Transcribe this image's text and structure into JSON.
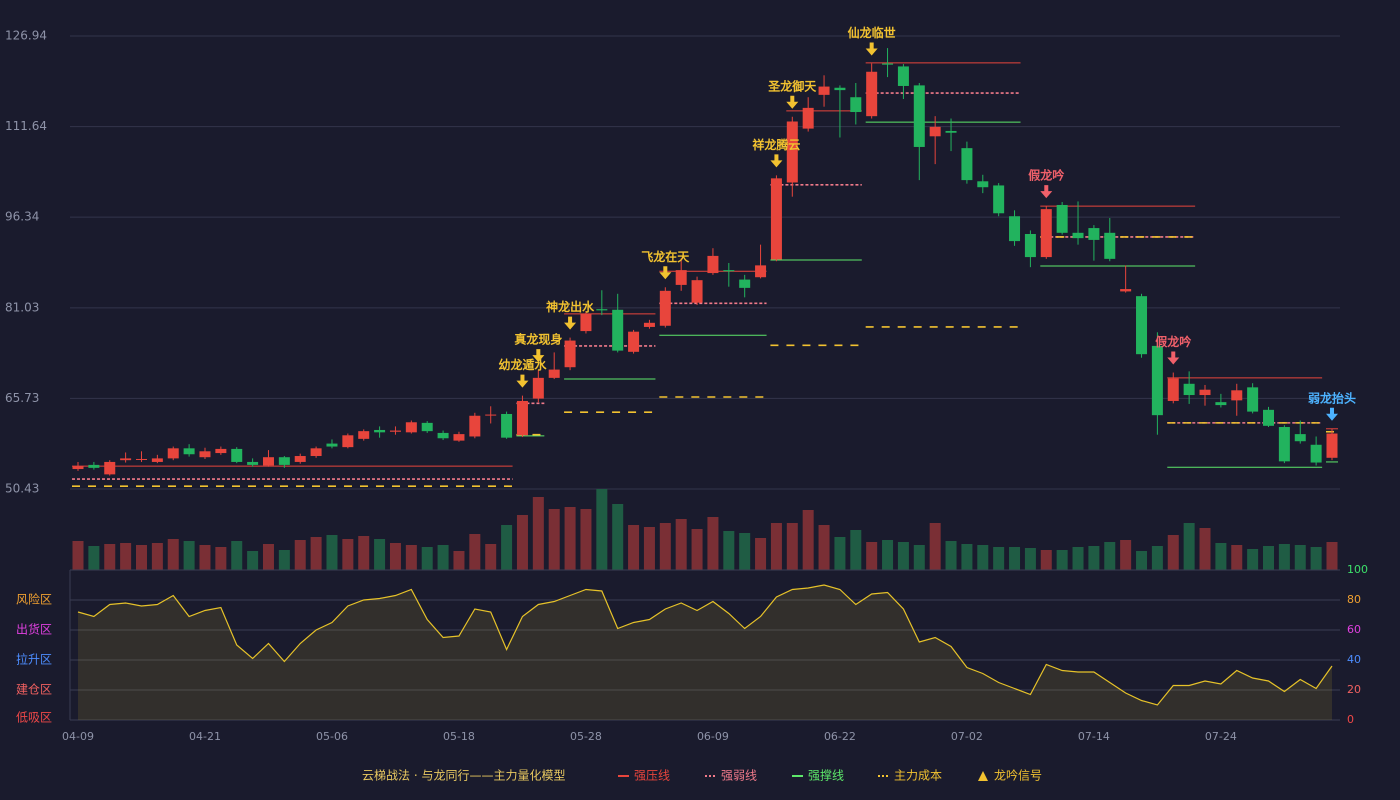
{
  "chart_data": [
    {
      "type": "candlestick",
      "categories": [
        "04-09",
        null,
        null,
        null,
        null,
        null,
        null,
        null,
        "04-21",
        null,
        null,
        null,
        null,
        null,
        null,
        null,
        "05-06",
        null,
        null,
        null,
        null,
        null,
        null,
        null,
        "05-18",
        null,
        null,
        null,
        null,
        null,
        null,
        null,
        "05-28",
        null,
        null,
        null,
        null,
        null,
        null,
        null,
        "06-09",
        null,
        null,
        null,
        null,
        null,
        null,
        null,
        "06-22",
        null,
        null,
        null,
        null,
        null,
        null,
        null,
        "07-02",
        null,
        null,
        null,
        null,
        null,
        null,
        null,
        "07-14",
        null,
        null,
        null,
        null,
        null,
        null,
        null,
        "07-24",
        null,
        null,
        null,
        null,
        null,
        null,
        null
      ],
      "open": [
        53.8,
        54.5,
        52.9,
        55.3,
        55.4,
        55.0,
        55.6,
        57.3,
        55.8,
        56.5,
        57.2,
        55.0,
        54.4,
        55.8,
        55.0,
        56.0,
        58.1,
        57.5,
        58.9,
        60.4,
        60.1,
        60.0,
        61.6,
        59.9,
        58.6,
        59.3,
        62.9,
        63.1,
        59.5,
        65.7,
        69.2,
        71.0,
        77.1,
        80.8,
        80.7,
        73.6,
        77.8,
        78.0,
        84.9,
        81.9,
        86.9,
        87.4,
        85.8,
        86.2,
        89.2,
        102.2,
        111.3,
        117.0,
        118.2,
        116.6,
        113.4,
        122.3,
        121.8,
        118.6,
        110.0,
        110.9,
        108.0,
        102.4,
        101.7,
        96.5,
        93.5,
        89.6,
        98.4,
        93.7,
        94.5,
        93.7,
        83.8,
        83.0,
        74.6,
        65.3,
        68.2,
        66.3,
        65.1,
        65.4,
        67.6,
        63.8,
        60.9,
        59.7,
        57.9,
        55.7
      ],
      "high": [
        55.0,
        55.0,
        55.3,
        56.6,
        56.8,
        56.2,
        57.6,
        58.0,
        57.4,
        57.6,
        57.5,
        55.6,
        57.0,
        56.0,
        56.4,
        57.6,
        58.8,
        59.8,
        60.5,
        61.0,
        61.0,
        62.0,
        61.9,
        60.3,
        60.1,
        63.3,
        64.4,
        63.5,
        66.2,
        70.5,
        73.5,
        76.0,
        80.5,
        84.0,
        83.4,
        77.3,
        79.0,
        84.5,
        89.4,
        86.3,
        91.1,
        88.6,
        86.6,
        91.7,
        103.4,
        113.3,
        116.6,
        120.3,
        118.6,
        119.0,
        122.3,
        124.9,
        122.2,
        119.0,
        113.4,
        113.0,
        109.1,
        103.5,
        102.1,
        97.5,
        94.1,
        98.2,
        98.9,
        99.0,
        95.0,
        96.2,
        88.2,
        83.4,
        76.9,
        70.1,
        70.3,
        68.0,
        66.5,
        68.2,
        68.3,
        64.3,
        61.2,
        62.0,
        59.3,
        60.6
      ],
      "low": [
        53.5,
        53.7,
        52.7,
        54.9,
        55.0,
        54.8,
        55.3,
        55.9,
        55.5,
        56.2,
        54.8,
        54.2,
        54.2,
        54.0,
        54.7,
        55.7,
        57.3,
        57.3,
        58.6,
        59.1,
        59.6,
        59.8,
        59.9,
        58.7,
        58.4,
        59.0,
        61.5,
        58.9,
        59.2,
        65.1,
        69.0,
        70.5,
        76.7,
        79.8,
        73.5,
        73.3,
        77.5,
        77.7,
        83.9,
        81.5,
        86.6,
        84.6,
        82.8,
        86.0,
        88.9,
        99.8,
        110.8,
        115.0,
        109.8,
        112.0,
        113.0,
        120.0,
        116.3,
        102.6,
        105.3,
        107.5,
        102.0,
        100.4,
        96.5,
        91.5,
        87.9,
        89.3,
        93.4,
        91.7,
        89.0,
        88.9,
        83.6,
        72.6,
        59.6,
        64.9,
        64.8,
        64.5,
        64.2,
        62.8,
        63.2,
        60.9,
        54.8,
        58.1,
        54.4,
        55.3
      ],
      "close": [
        54.3,
        54.0,
        55.0,
        55.6,
        55.5,
        55.6,
        57.3,
        56.3,
        56.8,
        57.2,
        55.0,
        54.5,
        55.8,
        54.5,
        56.0,
        57.3,
        57.6,
        59.5,
        60.2,
        60.0,
        60.3,
        61.7,
        60.2,
        59.0,
        59.7,
        62.8,
        63.0,
        59.1,
        65.3,
        69.2,
        70.6,
        75.5,
        80.0,
        80.6,
        73.8,
        77.0,
        78.5,
        83.9,
        87.4,
        85.7,
        89.8,
        87.2,
        84.4,
        88.2,
        102.9,
        112.5,
        114.8,
        118.4,
        117.8,
        114.1,
        120.9,
        122.1,
        118.5,
        108.2,
        111.6,
        110.6,
        102.6,
        101.4,
        97.0,
        92.3,
        89.6,
        97.7,
        93.7,
        92.8,
        92.5,
        89.3,
        84.2,
        73.2,
        62.9,
        69.1,
        66.3,
        67.2,
        64.6,
        67.1,
        63.5,
        61.1,
        55.1,
        58.5,
        54.9,
        59.8
      ],
      "up_color": "#e8453c",
      "down_color": "#22b35e",
      "ylim": [
        50.43,
        126.94
      ],
      "yticks": [
        50.43,
        65.73,
        81.03,
        96.34,
        111.64,
        126.94
      ],
      "grid": true,
      "levels": [
        {
          "name": "强压线",
          "color": "#e8453c",
          "dashed": false,
          "segments": [
            {
              "from": 0,
              "to": 27,
              "value": 54.3
            },
            {
              "from": 31,
              "to": 36,
              "value": 80.0
            },
            {
              "from": 37,
              "to": 43,
              "value": 87.2
            },
            {
              "from": 45,
              "to": 49,
              "value": 114.3
            },
            {
              "from": 50,
              "to": 59,
              "value": 122.4
            },
            {
              "from": 61,
              "to": 70,
              "value": 98.2
            },
            {
              "from": 69,
              "to": 78,
              "value": 69.2
            },
            {
              "from": 79,
              "to": 79,
              "value": 60.6
            }
          ]
        },
        {
          "name": "强弱线",
          "color": "#f07a8a",
          "dashed": true,
          "segments": [
            {
              "from": 0,
              "to": 27,
              "value": 52.1
            },
            {
              "from": 28,
              "to": 29,
              "value": 64.9
            },
            {
              "from": 31,
              "to": 36,
              "value": 74.6
            },
            {
              "from": 37,
              "to": 43,
              "value": 81.8
            },
            {
              "from": 44,
              "to": 49,
              "value": 101.8
            },
            {
              "from": 50,
              "to": 59,
              "value": 117.3
            },
            {
              "from": 61,
              "to": 70,
              "value": 93.0
            },
            {
              "from": 69,
              "to": 78,
              "value": 61.6
            }
          ]
        },
        {
          "name": "强撑线",
          "color": "#5de86a",
          "dashed": false,
          "segments": [
            {
              "from": 28,
              "to": 29,
              "value": 59.4
            },
            {
              "from": 31,
              "to": 36,
              "value": 69.0
            },
            {
              "from": 37,
              "to": 43,
              "value": 76.4
            },
            {
              "from": 44,
              "to": 49,
              "value": 89.1
            },
            {
              "from": 50,
              "to": 59,
              "value": 112.4
            },
            {
              "from": 61,
              "to": 70,
              "value": 88.1
            },
            {
              "from": 69,
              "to": 78,
              "value": 54.1
            },
            {
              "from": 79,
              "to": 79,
              "value": 55.0
            }
          ]
        },
        {
          "name": "主力成本",
          "color": "#f2c230",
          "dashed": true,
          "segments": [
            {
              "from": 0,
              "to": 27,
              "value": 50.9
            },
            {
              "from": 28,
              "to": 29,
              "value": 59.6
            },
            {
              "from": 31,
              "to": 36,
              "value": 63.4
            },
            {
              "from": 37,
              "to": 43,
              "value": 65.97
            },
            {
              "from": 44,
              "to": 49,
              "value": 74.7
            },
            {
              "from": 50,
              "to": 59,
              "value": 77.8
            },
            {
              "from": 61,
              "to": 70,
              "value": 93.0
            },
            {
              "from": 69,
              "to": 78,
              "value": 61.6
            },
            {
              "from": 79,
              "to": 79,
              "value": 60.1
            }
          ]
        }
      ],
      "signals": [
        {
          "index": 28,
          "label": "幼龙遁水",
          "color": "#f2c230"
        },
        {
          "index": 29,
          "label": "真龙现身",
          "color": "#f2c230"
        },
        {
          "index": 31,
          "label": "神龙出水",
          "color": "#f2c230"
        },
        {
          "index": 37,
          "label": "飞龙在天",
          "color": "#f2c230"
        },
        {
          "index": 44,
          "label": "祥龙腾云",
          "color": "#f2c230"
        },
        {
          "index": 45,
          "label": "圣龙御天",
          "color": "#f2c230"
        },
        {
          "index": 50,
          "label": "仙龙临世",
          "color": "#f2c230"
        },
        {
          "index": 61,
          "label": "假龙吟",
          "color": "#f0606a"
        },
        {
          "index": 69,
          "label": "假龙吟",
          "color": "#f0606a"
        },
        {
          "index": 79,
          "label": "弱龙抬头",
          "color": "#4db3ff"
        }
      ],
      "legend_title": "云梯战法 · 与龙同行——主力量化模型",
      "signal_legend": "龙吟信号"
    },
    {
      "type": "bar",
      "values": [
        29,
        24,
        26,
        27,
        25,
        27,
        31,
        29,
        25,
        23,
        29,
        19,
        26,
        20,
        30,
        33,
        35,
        31,
        34,
        31,
        27,
        25,
        23,
        25,
        19,
        36,
        26,
        45,
        55,
        73,
        61,
        63,
        61,
        81,
        66,
        45,
        43,
        47,
        51,
        41,
        53,
        39,
        37,
        32,
        47,
        47,
        60,
        45,
        33,
        40,
        28,
        30,
        28,
        25,
        47,
        29,
        26,
        25,
        23,
        23,
        22,
        20,
        20,
        23,
        24,
        28,
        30,
        19,
        24,
        35,
        47,
        42,
        27,
        25,
        21,
        24,
        26,
        25,
        23,
        28
      ],
      "up_color": "#7a2f35",
      "down_color": "#1f5c44"
    },
    {
      "type": "line",
      "values": [
        72,
        69,
        77,
        78,
        76,
        77,
        83,
        69,
        73,
        75,
        50,
        41,
        51,
        39,
        51,
        60,
        65,
        76,
        80,
        81,
        83,
        87,
        67,
        55,
        56,
        74,
        72,
        47,
        69,
        77,
        79,
        83,
        87,
        86,
        61,
        65,
        67,
        74,
        78,
        73,
        79,
        71,
        61,
        69,
        82,
        87,
        88,
        90,
        87,
        77,
        84,
        85,
        74,
        52,
        55,
        49,
        35,
        31,
        25,
        21,
        17,
        37,
        33,
        32,
        32,
        25,
        18,
        13,
        10,
        23,
        23,
        26,
        24,
        33,
        28,
        26,
        19,
        27,
        21,
        36
      ],
      "color": "#e6c229",
      "y2lim": [
        0,
        100
      ],
      "y2ticks": [
        0,
        20,
        40,
        60,
        80,
        100
      ],
      "y2tick_colors": [
        "#f04848",
        "#f06060",
        "#4d8dff",
        "#e040e0",
        "#f0a030",
        "#3ce06a"
      ],
      "zones": [
        {
          "label": "风险区",
          "value": 80,
          "color": "#f0a030"
        },
        {
          "label": "出货区",
          "value": 60,
          "color": "#e040e0"
        },
        {
          "label": "拉升区",
          "value": 40,
          "color": "#4d8dff"
        },
        {
          "label": "建仓区",
          "value": 20,
          "color": "#f06060"
        },
        {
          "label": "低吸区",
          "value": 0,
          "color": "#f04848"
        }
      ]
    }
  ]
}
